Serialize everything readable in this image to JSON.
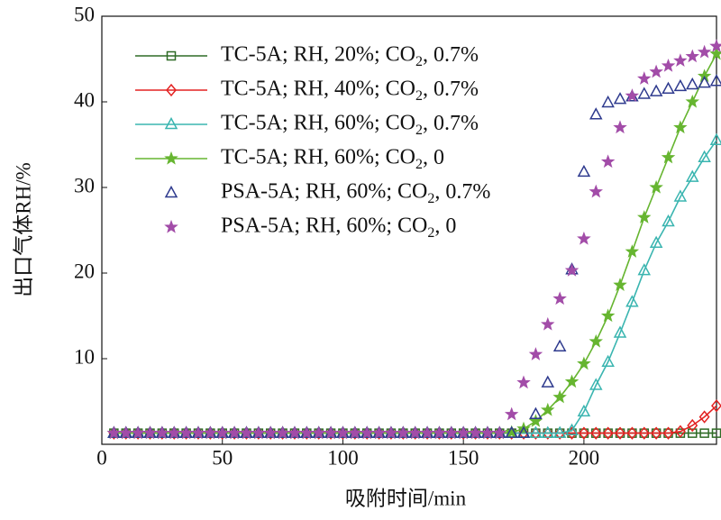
{
  "chart_data": {
    "type": "line",
    "xlabel": "吸附时间/min",
    "ylabel": "出口气体RH/%",
    "x": [
      5,
      10,
      15,
      20,
      25,
      30,
      35,
      40,
      45,
      50,
      55,
      60,
      65,
      70,
      75,
      80,
      85,
      90,
      95,
      100,
      105,
      110,
      115,
      120,
      125,
      130,
      135,
      140,
      145,
      150,
      155,
      160,
      165,
      170,
      175,
      180,
      185,
      190,
      195,
      200,
      205,
      210,
      215,
      220,
      225,
      230,
      235,
      240,
      245,
      250,
      255
    ],
    "xlim": [
      0,
      255
    ],
    "xticks": [
      0,
      50,
      100,
      150,
      200
    ],
    "ylim": [
      0,
      50
    ],
    "yticks": [
      10,
      20,
      30,
      40,
      50
    ],
    "legend": "upper left",
    "series": [
      {
        "name": "TC-5A; RH, 20%; CO2, 0.7%",
        "color": "#2f6b26",
        "marker": "square",
        "line": true,
        "values": [
          1.3,
          1.3,
          1.3,
          1.3,
          1.3,
          1.3,
          1.3,
          1.3,
          1.3,
          1.3,
          1.3,
          1.3,
          1.3,
          1.3,
          1.3,
          1.3,
          1.3,
          1.3,
          1.3,
          1.3,
          1.3,
          1.3,
          1.3,
          1.3,
          1.3,
          1.3,
          1.3,
          1.3,
          1.3,
          1.3,
          1.3,
          1.3,
          1.3,
          1.3,
          1.3,
          1.3,
          1.3,
          1.3,
          1.3,
          1.3,
          1.3,
          1.3,
          1.3,
          1.3,
          1.3,
          1.3,
          1.3,
          1.3,
          1.3,
          1.3,
          1.3
        ]
      },
      {
        "name": "TC-5A; RH, 40%; CO2, 0.7%",
        "color": "#e32222",
        "marker": "diamond",
        "line": true,
        "values": [
          1.3,
          1.3,
          1.3,
          1.3,
          1.3,
          1.3,
          1.3,
          1.3,
          1.3,
          1.3,
          1.3,
          1.3,
          1.3,
          1.3,
          1.3,
          1.3,
          1.3,
          1.3,
          1.3,
          1.3,
          1.3,
          1.3,
          1.3,
          1.3,
          1.3,
          1.3,
          1.3,
          1.3,
          1.3,
          1.3,
          1.3,
          1.3,
          1.3,
          1.3,
          1.3,
          1.3,
          1.3,
          1.3,
          1.3,
          1.3,
          1.3,
          1.3,
          1.3,
          1.3,
          1.3,
          1.3,
          1.3,
          1.5,
          2.2,
          3.2,
          4.5
        ]
      },
      {
        "name": "TC-5A; RH, 60%; CO2, 0.7%",
        "color": "#3ab5b0",
        "marker": "triangle",
        "line": true,
        "values": [
          1.3,
          1.3,
          1.3,
          1.3,
          1.3,
          1.3,
          1.3,
          1.3,
          1.3,
          1.3,
          1.3,
          1.3,
          1.3,
          1.3,
          1.3,
          1.3,
          1.3,
          1.3,
          1.3,
          1.3,
          1.3,
          1.3,
          1.3,
          1.3,
          1.3,
          1.3,
          1.3,
          1.3,
          1.3,
          1.3,
          1.3,
          1.3,
          1.3,
          1.3,
          1.3,
          1.3,
          1.3,
          1.3,
          1.6,
          3.8,
          6.9,
          9.6,
          13,
          16.6,
          20.3,
          23.5,
          26,
          28.9,
          31.2,
          33.5,
          35.5
        ]
      },
      {
        "name": "TC-5A; RH, 60%; CO2, 0",
        "color": "#66b530",
        "marker": "star",
        "line": true,
        "values": [
          1.3,
          1.3,
          1.3,
          1.3,
          1.3,
          1.3,
          1.3,
          1.3,
          1.3,
          1.3,
          1.3,
          1.3,
          1.3,
          1.3,
          1.3,
          1.3,
          1.3,
          1.3,
          1.3,
          1.3,
          1.3,
          1.3,
          1.3,
          1.3,
          1.3,
          1.3,
          1.3,
          1.3,
          1.3,
          1.3,
          1.3,
          1.3,
          1.3,
          1.4,
          1.8,
          2.7,
          4,
          5.5,
          7.3,
          9.4,
          12,
          15,
          18.6,
          22.5,
          26.5,
          30,
          33.5,
          37,
          40,
          43,
          45.6
        ]
      },
      {
        "name": "PSA-5A; RH, 60%; CO2, 0.7%",
        "color": "#2e3a8e",
        "marker": "triangle",
        "line": false,
        "values": [
          1.3,
          1.3,
          1.3,
          1.3,
          1.3,
          1.3,
          1.3,
          1.3,
          1.3,
          1.3,
          1.3,
          1.3,
          1.3,
          1.3,
          1.3,
          1.3,
          1.3,
          1.3,
          1.3,
          1.3,
          1.3,
          1.3,
          1.3,
          1.3,
          1.3,
          1.3,
          1.3,
          1.3,
          1.3,
          1.3,
          1.3,
          1.3,
          1.3,
          1.3,
          1.3,
          3.5,
          7.2,
          11.4,
          20.4,
          31.8,
          38.5,
          39.9,
          40.3,
          40.6,
          40.9,
          41.2,
          41.5,
          41.8,
          42,
          42.2,
          42.4
        ]
      },
      {
        "name": "PSA-5A; RH, 60%; CO2, 0",
        "color": "#a24ca8",
        "marker": "star",
        "line": false,
        "values": [
          1.3,
          1.3,
          1.3,
          1.3,
          1.3,
          1.3,
          1.3,
          1.3,
          1.3,
          1.3,
          1.3,
          1.3,
          1.3,
          1.3,
          1.3,
          1.3,
          1.3,
          1.3,
          1.3,
          1.3,
          1.3,
          1.3,
          1.3,
          1.3,
          1.3,
          1.3,
          1.3,
          1.3,
          1.3,
          1.3,
          1.3,
          1.3,
          1.3,
          3.5,
          7.2,
          10.5,
          14,
          17,
          20.3,
          24,
          29.5,
          33,
          37,
          40.7,
          42.7,
          43.5,
          44.2,
          44.8,
          45.3,
          45.8,
          46.5
        ]
      }
    ]
  }
}
